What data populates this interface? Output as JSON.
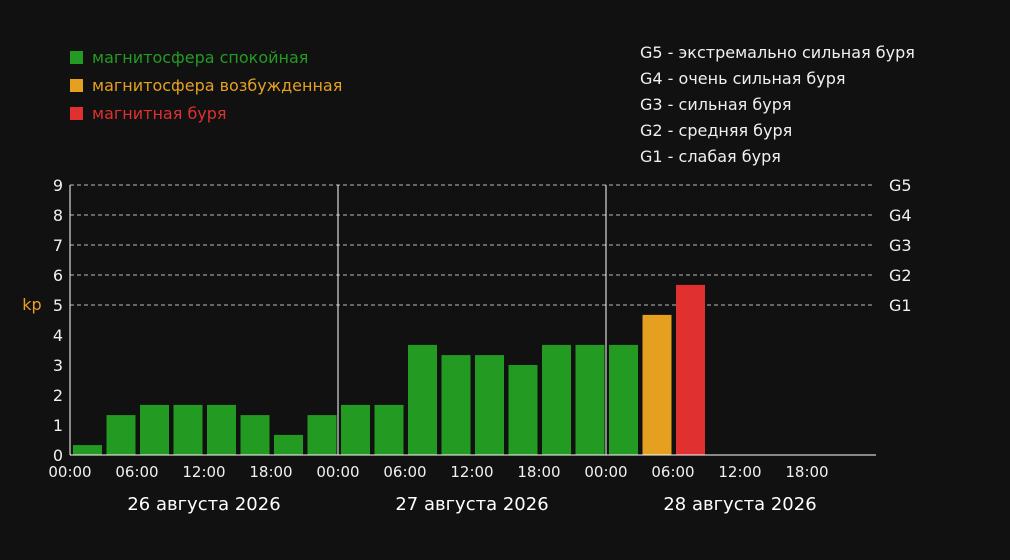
{
  "legend": {
    "items": [
      {
        "label": "магнитосфера спокойная",
        "color": "#239b23"
      },
      {
        "label": "магнитосфера возбужденная",
        "color": "#e6a020"
      },
      {
        "label": "магнитная буря",
        "color": "#e03030"
      }
    ]
  },
  "storm_levels": [
    "G5 - экстремально сильная буря",
    "G4 - очень сильная буря",
    "G3 - сильная буря",
    "G2 - средняя буря",
    "G1 - слабая буря"
  ],
  "chart_data": {
    "type": "bar",
    "ylabel": "kp",
    "ylim": [
      0,
      9
    ],
    "yticks": [
      0,
      1,
      2,
      3,
      4,
      5,
      6,
      7,
      8,
      9
    ],
    "g_levels": [
      {
        "label": "G5",
        "value": 9
      },
      {
        "label": "G4",
        "value": 8
      },
      {
        "label": "G3",
        "value": 7
      },
      {
        "label": "G2",
        "value": 6
      },
      {
        "label": "G1",
        "value": 5
      }
    ],
    "time_ticks": [
      "00:00",
      "06:00",
      "12:00",
      "18:00",
      "00:00",
      "06:00",
      "12:00",
      "18:00",
      "00:00",
      "06:00",
      "12:00",
      "18:00"
    ],
    "days": [
      "26 августа 2026",
      "27 августа 2026",
      "28 августа 2026"
    ],
    "values": [
      0.33,
      1.33,
      1.67,
      1.67,
      1.67,
      1.33,
      0.67,
      1.33,
      1.67,
      1.67,
      3.67,
      3.33,
      3.33,
      3.0,
      3.67,
      3.67,
      3.67,
      4.67,
      5.67
    ],
    "status": [
      "quiet",
      "quiet",
      "quiet",
      "quiet",
      "quiet",
      "quiet",
      "quiet",
      "quiet",
      "quiet",
      "quiet",
      "quiet",
      "quiet",
      "quiet",
      "quiet",
      "quiet",
      "quiet",
      "quiet",
      "active",
      "storm"
    ],
    "colors": {
      "quiet": "#239b23",
      "active": "#e6a020",
      "storm": "#e03030",
      "ylabel": "#e6a020",
      "text": "#f0f0f0",
      "grid": "#bbbbbb"
    }
  }
}
